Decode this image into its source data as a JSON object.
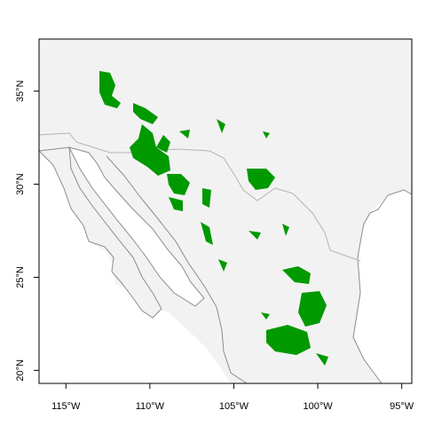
{
  "map": {
    "x_axis": {
      "range": [
        -116.6,
        -94.4
      ],
      "ticks": [
        {
          "value": -115,
          "label": "115°W"
        },
        {
          "value": -110,
          "label": "110°W"
        },
        {
          "value": -105,
          "label": "105°W"
        },
        {
          "value": -100,
          "label": "100°W"
        },
        {
          "value": -95,
          "label": "95°W"
        }
      ]
    },
    "y_axis": {
      "range": [
        19.3,
        37.8
      ],
      "ticks": [
        {
          "value": 20,
          "label": "20°N"
        },
        {
          "value": 25,
          "label": "25°N"
        },
        {
          "value": 30,
          "label": "30°N"
        },
        {
          "value": 35,
          "label": "35°N"
        }
      ]
    },
    "colors": {
      "land": "#f2f2f2",
      "border": "#a0a0a0",
      "coast": "#8c8c8c",
      "habitat": "#009900",
      "background": "#ffffff"
    }
  }
}
